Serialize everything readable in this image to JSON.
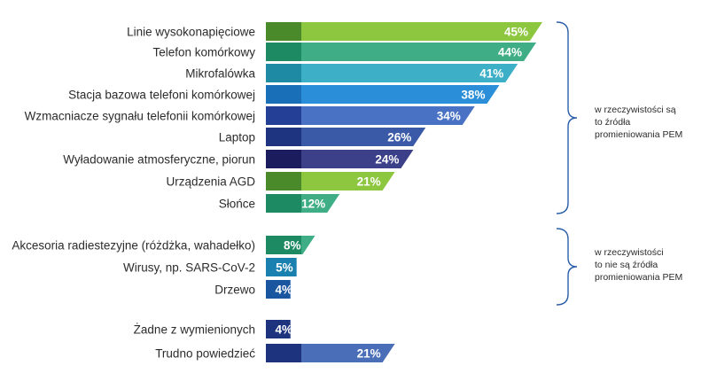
{
  "chart_data": {
    "type": "bar",
    "orientation": "horizontal",
    "title": "",
    "xlabel": "",
    "ylabel": "",
    "value_suffix": "%",
    "xlim": [
      0,
      45
    ],
    "grid": false,
    "categories": [
      "Linie wysokonapięciowe",
      "Telefon komórkowy",
      "Mikrofalówka",
      "Stacja bazowa telefoni komórkowej",
      "Wzmacniacze sygnału telefonii komórkowej",
      "Laptop",
      "Wyładowanie atmosferyczne, piorun",
      "Urządzenia AGD",
      "Słońce",
      "Akcesoria radiestezyjne (różdżka, wahadełko)",
      "Wirusy, np. SARS-CoV-2",
      "Drzewo",
      "Żadne z wymienionych",
      "Trudno powiedzieć"
    ],
    "values": [
      45,
      44,
      41,
      38,
      34,
      26,
      24,
      21,
      12,
      8,
      5,
      4,
      4,
      21
    ],
    "value_labels": [
      "45%",
      "44%",
      "41%",
      "38%",
      "34%",
      "26%",
      "24%",
      "21%",
      "12%",
      "8%",
      "5%",
      "4%",
      "4%",
      "21%"
    ],
    "groups": [
      {
        "name": "w rzeczywistości są to źródła promieniowania PEM",
        "start": 0,
        "end": 8
      },
      {
        "name": "w rzeczywistości to nie są źródła promieniowania PEM",
        "start": 9,
        "end": 11
      },
      {
        "name": "",
        "start": 12,
        "end": 13
      }
    ],
    "colors": {
      "light": [
        "#8dc63f",
        "#3fae86",
        "#3db0c8",
        "#2a8fd8",
        "#4a72c4",
        "#3a5aa8",
        "#3b4088",
        "#8dc63f",
        "#3fae86",
        "#3fae86",
        "#2a9fd0",
        "#2a72c0",
        "#2f4fa6",
        "#4a6fb8"
      ],
      "dark": [
        "#4b8a2a",
        "#1e8a64",
        "#1e8aa4",
        "#1a70b8",
        "#233f96",
        "#1e3480",
        "#1a1c5e",
        "#4b8a2a",
        "#1e8a64",
        "#1e8a64",
        "#1a80b0",
        "#1a56a0",
        "#1e337e",
        "#1e337e"
      ],
      "bracket": "#2a5fa8"
    }
  },
  "annotations": {
    "group1_lines": [
      "w rzeczywistości są",
      "to źródła",
      "promieniowania PEM"
    ],
    "group2_lines": [
      "w rzeczywistości",
      "to nie są źródła",
      "promieniowania PEM"
    ]
  }
}
